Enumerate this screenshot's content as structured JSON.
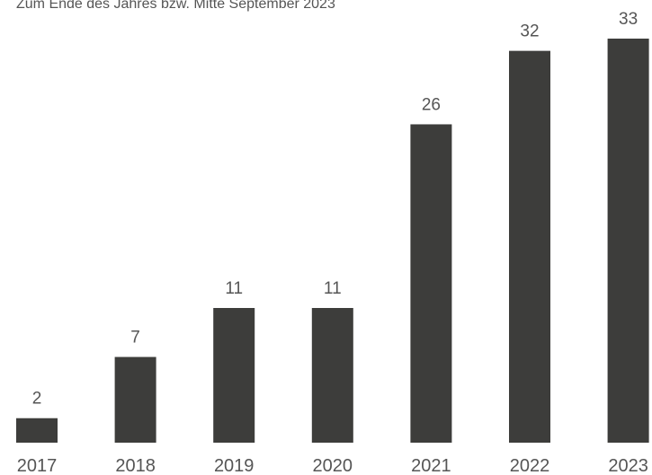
{
  "chart_data": {
    "type": "bar",
    "subtitle": "Zum Ende des Jahres bzw. Mitte September 2023",
    "categories": [
      "2017",
      "2018",
      "2019",
      "2020",
      "2021",
      "2022",
      "2023"
    ],
    "values": [
      2,
      7,
      11,
      11,
      26,
      32,
      33
    ],
    "color": "#3d3d3b"
  }
}
